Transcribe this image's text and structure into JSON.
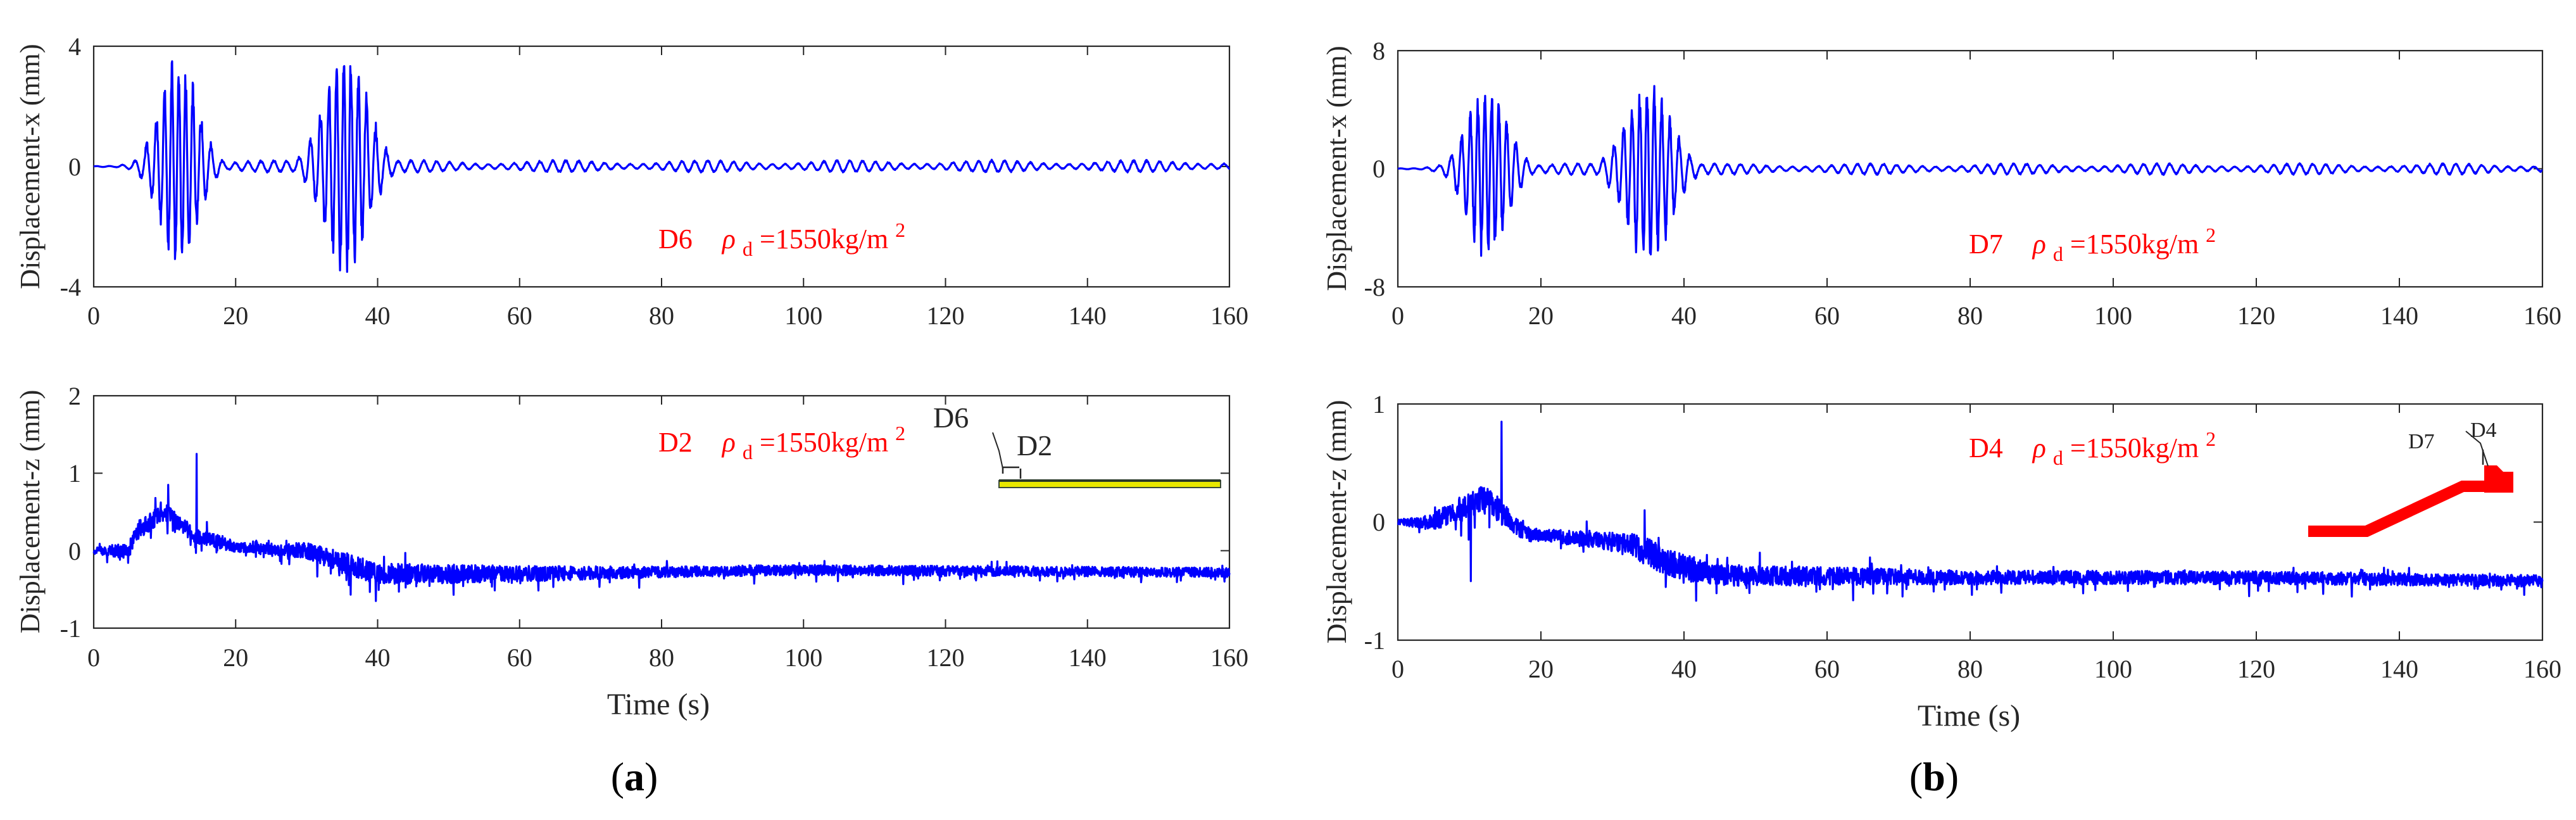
{
  "colors": {
    "signal": "#0000ff",
    "annotation": "#ff0000",
    "axis": "#262626",
    "ground_yellow": "#e8e800",
    "ground_dark": "#3a4a3a",
    "slope_red": "#ff0000"
  },
  "panels": [
    {
      "label": "(a)",
      "label_open": "(",
      "label_letter": "a",
      "label_close": ")"
    },
    {
      "label": "(b)",
      "label_open": "(",
      "label_letter": "b",
      "label_close": ")"
    }
  ],
  "insets": {
    "a": {
      "top_point": "D6",
      "bottom_point": "D2"
    },
    "b": {
      "left_point": "D7",
      "right_point": "D4"
    }
  },
  "chart_data": [
    {
      "id": "a-top",
      "panel": "a",
      "type": "line",
      "title": "",
      "xlabel": "",
      "ylabel": "Displacement-x (mm)",
      "xlim": [
        0,
        160
      ],
      "ylim": [
        -4,
        4
      ],
      "xticks": [
        0,
        20,
        40,
        60,
        80,
        100,
        120,
        140,
        160
      ],
      "yticks": [
        -4,
        0,
        4
      ],
      "annotation": {
        "point": "D6",
        "symbol": "ρ",
        "sub": "d",
        "value": "=1550kg/m",
        "sup": "2"
      },
      "series": [
        {
          "name": "D6 horizontal",
          "type": "oscillation",
          "seed": 11,
          "bursts": [
            {
              "center": 12.0,
              "sigma": 2.6,
              "amp": 3.0,
              "freq": 1.05
            },
            {
              "center": 35.5,
              "sigma": 3.0,
              "amp": 3.2,
              "freq": 1.0
            }
          ],
          "baseline_amp": 0.18,
          "baseline_freq": 0.55,
          "peaks": {
            "max": 3.5,
            "min": -3.5
          }
        }
      ]
    },
    {
      "id": "a-bottom",
      "panel": "a",
      "type": "line",
      "title": "",
      "xlabel": "Time (s)",
      "ylabel": "Displacement-z (mm)",
      "xlim": [
        0,
        160
      ],
      "ylim": [
        -1,
        2
      ],
      "xticks": [
        0,
        20,
        40,
        60,
        80,
        100,
        120,
        140,
        160
      ],
      "yticks": [
        -1,
        0,
        1,
        2
      ],
      "annotation": {
        "point": "D2",
        "symbol": "ρ",
        "sub": "d",
        "value": "=1550kg/m",
        "sup": "2"
      },
      "series": [
        {
          "name": "D2 vertical",
          "type": "noisy",
          "seed": 23,
          "segments": [
            [
              0,
              0.0
            ],
            [
              5,
              0.0
            ],
            [
              6,
              0.25
            ],
            [
              10,
              0.5
            ],
            [
              14,
              0.2
            ],
            [
              20,
              0.05
            ],
            [
              30,
              0.0
            ],
            [
              35,
              -0.15
            ],
            [
              40,
              -0.3
            ],
            [
              60,
              -0.3
            ],
            [
              100,
              -0.25
            ],
            [
              160,
              -0.28
            ]
          ],
          "noise": [
            [
              0,
              0.04
            ],
            [
              6,
              0.12
            ],
            [
              15,
              0.1
            ],
            [
              22,
              0.06
            ],
            [
              30,
              0.1
            ],
            [
              36,
              0.14
            ],
            [
              50,
              0.12
            ],
            [
              80,
              0.07
            ],
            [
              160,
              0.06
            ]
          ],
          "spikes": [
            {
              "t": 14.5,
              "v": 1.25
            },
            {
              "t": 10.5,
              "v": 0.85
            }
          ],
          "ylim_min": -0.7
        }
      ]
    },
    {
      "id": "b-top",
      "panel": "b",
      "type": "line",
      "title": "",
      "xlabel": "",
      "ylabel": "Displacement-x (mm)",
      "xlim": [
        0,
        160
      ],
      "ylim": [
        -8,
        8
      ],
      "xticks": [
        0,
        20,
        40,
        60,
        80,
        100,
        120,
        140,
        160
      ],
      "yticks": [
        -8,
        0,
        8
      ],
      "annotation": {
        "point": "D7",
        "symbol": "ρ",
        "sub": "d",
        "value": "=1550kg/m",
        "sup": "2"
      },
      "series": [
        {
          "name": "D7 horizontal",
          "type": "oscillation",
          "seed": 37,
          "bursts": [
            {
              "center": 12.5,
              "sigma": 2.7,
              "amp": 5.3,
              "freq": 1.05
            },
            {
              "center": 35.0,
              "sigma": 3.1,
              "amp": 5.4,
              "freq": 1.0
            }
          ],
          "baseline_amp": 0.35,
          "baseline_freq": 0.55,
          "peaks": {
            "max": 5.6,
            "min": -5.9
          }
        }
      ]
    },
    {
      "id": "b-bottom",
      "panel": "b",
      "type": "line",
      "title": "",
      "xlabel": "Time (s)",
      "ylabel": "Displacement-z (mm)",
      "xlim": [
        0,
        160
      ],
      "ylim": [
        -1,
        1
      ],
      "xticks": [
        0,
        20,
        40,
        60,
        80,
        100,
        120,
        140,
        160
      ],
      "yticks": [
        -1,
        0,
        1
      ],
      "annotation": {
        "point": "D4",
        "symbol": "ρ",
        "sub": "d",
        "value": "=1550kg/m",
        "sup": "2"
      },
      "series": [
        {
          "name": "D4 vertical",
          "type": "noisy",
          "seed": 51,
          "segments": [
            [
              0,
              0.0
            ],
            [
              5,
              0.0
            ],
            [
              8,
              0.1
            ],
            [
              12,
              0.2
            ],
            [
              18,
              -0.1
            ],
            [
              28,
              -0.15
            ],
            [
              33,
              -0.2
            ],
            [
              38,
              -0.35
            ],
            [
              45,
              -0.45
            ],
            [
              80,
              -0.47
            ],
            [
              120,
              -0.47
            ],
            [
              160,
              -0.5
            ]
          ],
          "noise": [
            [
              0,
              0.02
            ],
            [
              6,
              0.08
            ],
            [
              12,
              0.12
            ],
            [
              20,
              0.05
            ],
            [
              30,
              0.08
            ],
            [
              35,
              0.12
            ],
            [
              45,
              0.09
            ],
            [
              80,
              0.06
            ],
            [
              160,
              0.05
            ]
          ],
          "spikes": [
            {
              "t": 14.5,
              "v": 0.85
            },
            {
              "t": 10.2,
              "v": -0.5
            },
            {
              "t": 34.5,
              "v": 0.1
            }
          ],
          "ylim_min": -0.75
        }
      ]
    }
  ]
}
